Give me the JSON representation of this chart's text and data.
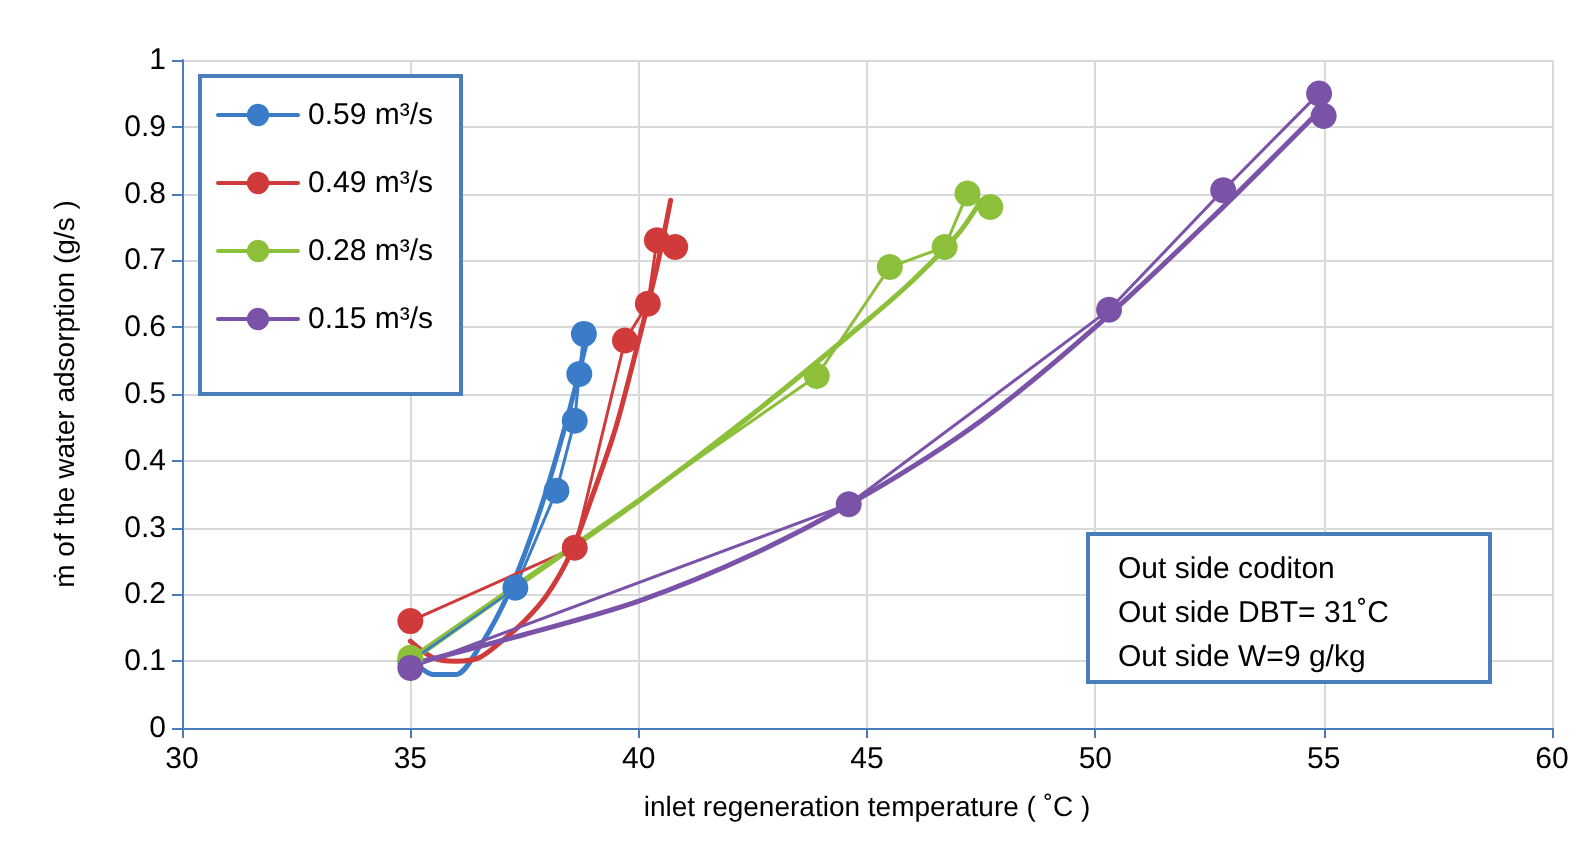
{
  "chart_data": {
    "type": "line",
    "xlabel": "inlet regeneration temperature ( ˚C )",
    "ylabel": "ṁ of the water adsorption (g/s )",
    "xlim": [
      30,
      60
    ],
    "xticks": [
      30,
      35,
      40,
      45,
      50,
      55,
      60
    ],
    "ylim": [
      0,
      1
    ],
    "yticks": [
      0,
      0.1,
      0.2,
      0.3,
      0.4,
      0.5,
      0.6,
      0.7,
      0.8,
      0.9,
      1
    ],
    "grid": true,
    "legend": "top left",
    "marker": "circle",
    "line_style": "solid",
    "annotations": [
      "Out side coditon",
      "Out side  DBT= 31˚C",
      "Out side W=9 g/kg"
    ],
    "series": [
      {
        "name": "0.59 m³/s",
        "color": "#3a7cc8",
        "x": [
          35,
          37.3,
          38.2,
          38.6,
          38.7,
          38.8
        ],
        "values": [
          0.1,
          0.21,
          0.355,
          0.46,
          0.53,
          0.59
        ]
      },
      {
        "name": "0.49 m³/s",
        "color": "#d03a3a",
        "x": [
          35,
          38.6,
          39.7,
          40.2,
          40.4,
          40.8
        ],
        "values": [
          0.16,
          0.27,
          0.58,
          0.635,
          0.73,
          0.72
        ]
      },
      {
        "name": "0.28 m³/s",
        "color": "#8cbf3a",
        "x": [
          35,
          43.9,
          45.5,
          46.7,
          47.2,
          47.7
        ],
        "values": [
          0.105,
          0.527,
          0.69,
          0.72,
          0.8,
          0.78
        ]
      },
      {
        "name": "0.15 m³/s",
        "color": "#7a52a8",
        "x": [
          35,
          44.6,
          50.3,
          52.8,
          54.9,
          55
        ],
        "values": [
          0.09,
          0.335,
          0.626,
          0.805,
          0.95,
          0.916
        ]
      },
      {
        "type": "line",
        "marker": "none",
        "color": "#3a7cc8",
        "x": [
          35,
          35.5,
          36,
          36.5,
          37,
          37.5,
          38,
          38.5,
          38.9
        ],
        "values": [
          0.105,
          0.08,
          0.08,
          0.12,
          0.18,
          0.26,
          0.36,
          0.48,
          0.59
        ]
      },
      {
        "type": "line",
        "marker": "none",
        "color": "#d03a3a",
        "x": [
          35,
          35.5,
          36,
          36.5,
          37,
          37.5,
          38,
          38.5,
          39,
          39.5,
          40,
          40.4,
          40.7
        ],
        "values": [
          0.13,
          0.105,
          0.1,
          0.105,
          0.13,
          0.16,
          0.2,
          0.26,
          0.35,
          0.45,
          0.58,
          0.69,
          0.79
        ]
      },
      {
        "type": "line",
        "marker": "none",
        "color": "#8cbf3a",
        "x": [
          35,
          37.5,
          40,
          42.5,
          45,
          46,
          47,
          47.5
        ],
        "values": [
          0.1,
          0.22,
          0.34,
          0.47,
          0.61,
          0.67,
          0.74,
          0.79
        ]
      },
      {
        "type": "line",
        "marker": "none",
        "color": "#7a52a8",
        "x": [
          35,
          37.5,
          40,
          42.5,
          45,
          47.5,
          50,
          52.5,
          55
        ],
        "values": [
          0.095,
          0.14,
          0.19,
          0.26,
          0.35,
          0.46,
          0.6,
          0.76,
          0.93
        ]
      }
    ]
  }
}
